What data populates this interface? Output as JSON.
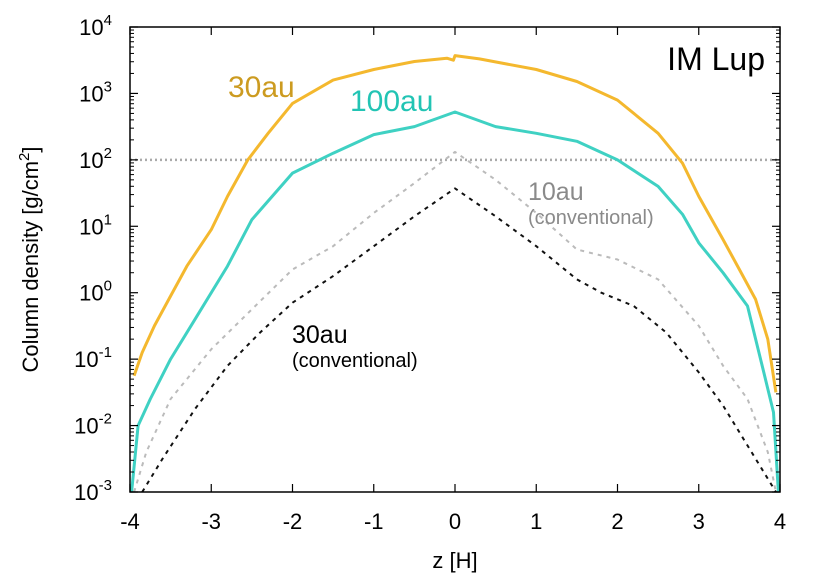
{
  "chart_data": {
    "type": "line",
    "title": "IM Lup",
    "xlabel": "z [H]",
    "ylabel_main": "Column density [g/cm",
    "ylabel_sup": "2",
    "ylabel_close": "]",
    "xlim": [
      -4,
      4
    ],
    "ylim_log10": [
      -3,
      4
    ],
    "y_scale": "log",
    "x_ticks": [
      {
        "v": -4,
        "label": "-4"
      },
      {
        "v": -3,
        "label": "-3"
      },
      {
        "v": -2,
        "label": "-2"
      },
      {
        "v": -1,
        "label": "-1"
      },
      {
        "v": 0,
        "label": "0"
      },
      {
        "v": 1,
        "label": "1"
      },
      {
        "v": 2,
        "label": "2"
      },
      {
        "v": 3,
        "label": "3"
      },
      {
        "v": 4,
        "label": "4"
      }
    ],
    "y_ticks": [
      {
        "exp": -3,
        "base": "10",
        "sup": "-3"
      },
      {
        "exp": -2,
        "base": "10",
        "sup": "-2"
      },
      {
        "exp": -1,
        "base": "10",
        "sup": "-1"
      },
      {
        "exp": 0,
        "base": "10",
        "sup": "0"
      },
      {
        "exp": 1,
        "base": "10",
        "sup": "1"
      },
      {
        "exp": 2,
        "base": "10",
        "sup": "2"
      },
      {
        "exp": 3,
        "base": "10",
        "sup": "3"
      },
      {
        "exp": 4,
        "base": "10",
        "sup": "4"
      }
    ],
    "reference_line": {
      "log10_y": 2,
      "color": "#aaaaaa",
      "style": "dotted"
    },
    "series": [
      {
        "name": "30au",
        "color": "#f4b82e",
        "style": "solid",
        "x": [
          -3.95,
          -3.85,
          -3.7,
          -3.5,
          -3.3,
          -3.0,
          -2.8,
          -2.55,
          -2.3,
          -2.0,
          -1.5,
          -1.0,
          -0.5,
          -0.1,
          -0.02,
          0.0,
          0.3,
          1.0,
          1.5,
          2.0,
          2.5,
          2.8,
          3.0,
          3.3,
          3.5,
          3.7,
          3.85,
          3.95
        ],
        "y": [
          -1.25,
          -0.9,
          -0.5,
          -0.05,
          0.4,
          0.95,
          1.45,
          2.0,
          2.4,
          2.85,
          3.2,
          3.36,
          3.48,
          3.53,
          3.5,
          3.57,
          3.52,
          3.36,
          3.18,
          2.9,
          2.4,
          1.95,
          1.45,
          0.8,
          0.35,
          -0.1,
          -0.7,
          -1.5
        ]
      },
      {
        "name": "100au",
        "color": "#3fd1c3",
        "style": "solid",
        "x": [
          -3.98,
          -3.9,
          -3.75,
          -3.5,
          -3.2,
          -2.8,
          -2.5,
          -2.0,
          -1.5,
          -1.0,
          -0.5,
          0.0,
          0.5,
          1.0,
          1.5,
          2.0,
          2.5,
          2.8,
          3.0,
          3.3,
          3.6,
          3.8,
          3.92,
          3.98
        ],
        "y": [
          -3.0,
          -2.0,
          -1.6,
          -1.0,
          -0.4,
          0.4,
          1.1,
          1.8,
          2.1,
          2.38,
          2.5,
          2.72,
          2.5,
          2.4,
          2.28,
          2.0,
          1.6,
          1.18,
          0.75,
          0.3,
          -0.2,
          -1.2,
          -1.8,
          -3.0
        ]
      },
      {
        "name": "10au (conventional)",
        "color": "#bbbbbb",
        "style": "dashed",
        "x": [
          -3.95,
          -3.8,
          -3.5,
          -3.0,
          -2.5,
          -2.0,
          -1.5,
          -1.0,
          -0.5,
          0.0,
          0.5,
          1.0,
          1.5,
          2.0,
          2.5,
          3.0,
          3.3,
          3.6,
          3.85,
          3.95
        ],
        "y": [
          -3.0,
          -2.4,
          -1.6,
          -0.85,
          -0.25,
          0.35,
          0.7,
          1.2,
          1.65,
          2.12,
          1.7,
          1.2,
          0.65,
          0.5,
          0.2,
          -0.5,
          -1.1,
          -1.6,
          -2.4,
          -3.0
        ]
      },
      {
        "name": "30au (conventional)",
        "color": "#111111",
        "style": "dashed",
        "x": [
          -3.85,
          -3.6,
          -3.2,
          -2.8,
          -2.4,
          -2.0,
          -1.5,
          -1.0,
          -0.5,
          0.0,
          0.5,
          1.0,
          1.5,
          1.8,
          2.2,
          2.6,
          3.0,
          3.3,
          3.6,
          3.85,
          3.95
        ],
        "y": [
          -3.0,
          -2.5,
          -1.75,
          -1.1,
          -0.6,
          -0.15,
          0.25,
          0.7,
          1.15,
          1.57,
          1.15,
          0.7,
          0.2,
          0.0,
          -0.2,
          -0.6,
          -1.2,
          -1.7,
          -2.3,
          -2.8,
          -3.0
        ]
      }
    ],
    "annotations": [
      {
        "key": "title",
        "lines": [
          "IM Lup"
        ],
        "color": "#000000"
      },
      {
        "key": "s30",
        "lines": [
          "30au"
        ],
        "color": "#cc9b20"
      },
      {
        "key": "s100",
        "lines": [
          "100au"
        ],
        "color": "#22c4b4"
      },
      {
        "key": "s10c",
        "lines": [
          "10au",
          "(conventional)"
        ],
        "color": "#8a8a8a"
      },
      {
        "key": "s30c",
        "lines": [
          "30au",
          "(conventional)"
        ],
        "color": "#000000"
      }
    ]
  }
}
